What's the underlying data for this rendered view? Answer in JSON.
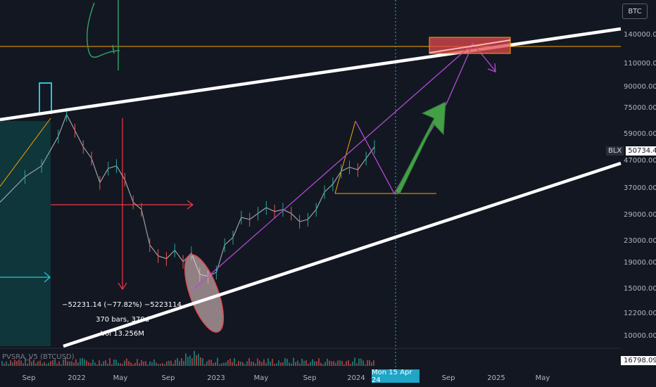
{
  "chart_data": {
    "type": "line",
    "symbol_button": "BTC",
    "price_axis_labels": [
      "140000.00",
      "110000.00",
      "90000.00",
      "75000.00",
      "59000.00",
      "47000.00",
      "37000.00",
      "29000.00",
      "23000.00",
      "19000.00",
      "15000.00",
      "12200.00",
      "10000.00"
    ],
    "time_axis_labels": [
      "Sep",
      "2022",
      "May",
      "Sep",
      "2023",
      "May",
      "Sep",
      "2024",
      "Sep",
      "2025",
      "May"
    ],
    "crosshair_date": "Mon 15 Apr 24",
    "last_price": {
      "symbol": "BLX",
      "value": "50734.44"
    },
    "volume_value": "16798.09",
    "indicator_label": "PVSRA_V5 (BTCUSD)",
    "annotations": {
      "measure_line1": "−52231.14 (−77.82%) −5223114",
      "measure_line2": "370 bars, 370d",
      "measure_line3": "Vol 13.256M"
    },
    "series": [
      {
        "points": [
          [
            0,
            32000
          ],
          [
            3,
            40000
          ],
          [
            5,
            44000
          ],
          [
            7,
            57000
          ],
          [
            8,
            69000
          ],
          [
            9,
            60000
          ],
          [
            10,
            52000
          ],
          [
            11,
            47000
          ],
          [
            12,
            38000
          ],
          [
            13,
            43000
          ],
          [
            14,
            44000
          ],
          [
            15,
            39000
          ],
          [
            16,
            32000
          ],
          [
            17,
            30000
          ],
          [
            18,
            22000
          ],
          [
            19,
            20000
          ],
          [
            20,
            19500
          ],
          [
            21,
            21000
          ],
          [
            22,
            19000
          ],
          [
            23,
            20500
          ],
          [
            24,
            17000
          ],
          [
            25,
            16700
          ],
          [
            26,
            17300
          ],
          [
            27,
            22000
          ],
          [
            28,
            23500
          ],
          [
            29,
            28000
          ],
          [
            30,
            27500
          ],
          [
            31,
            29000
          ],
          [
            32,
            30500
          ],
          [
            33,
            29500
          ],
          [
            34,
            30000
          ],
          [
            35,
            29000
          ],
          [
            36,
            27000
          ],
          [
            37,
            27500
          ],
          [
            38,
            30000
          ],
          [
            39,
            35000
          ],
          [
            40,
            37500
          ],
          [
            41,
            42000
          ],
          [
            42,
            43500
          ],
          [
            43,
            42500
          ],
          [
            44,
            47000
          ],
          [
            45,
            52000
          ]
        ]
      }
    ],
    "colors": {
      "background": "#131722",
      "channel": "#ffffff",
      "horizontal_level": "#f7a600",
      "projection": "#b44ad6",
      "target_zone": "#e0494e",
      "green_arrow": "#43a047",
      "measure_arrow": "#f23645",
      "teal_region": "#0f3a3d",
      "teal_marker": "#26c6da"
    }
  }
}
